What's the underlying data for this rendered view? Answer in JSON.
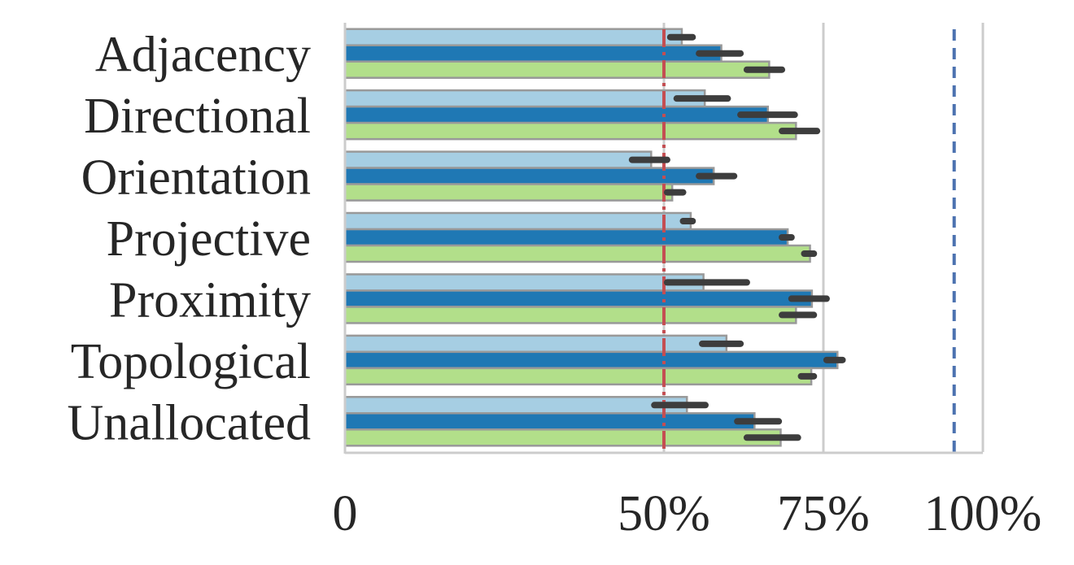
{
  "chart_data": {
    "type": "bar",
    "orientation": "horizontal",
    "categories": [
      "Adjacency",
      "Directional",
      "Orientation",
      "Projective",
      "Proximity",
      "Topological",
      "Unallocated"
    ],
    "series": [
      {
        "color": "#a6cee3",
        "values": [
          52.8,
          56.4,
          48.0,
          54.2,
          56.2,
          59.8,
          53.6
        ],
        "error_low": [
          51.0,
          52.0,
          45.0,
          53.0,
          50.5,
          56.0,
          48.5
        ],
        "error_high": [
          54.5,
          60.0,
          50.5,
          54.5,
          63.0,
          62.0,
          56.5
        ]
      },
      {
        "color": "#1f78b4",
        "values": [
          59.0,
          66.3,
          57.8,
          69.4,
          73.2,
          77.2,
          64.2
        ],
        "error_low": [
          55.5,
          62.0,
          55.5,
          68.5,
          70.0,
          75.5,
          61.5
        ],
        "error_high": [
          62.0,
          70.5,
          61.0,
          70.0,
          75.5,
          78.0,
          68.0
        ]
      },
      {
        "color": "#b2df8a",
        "values": [
          66.5,
          70.7,
          51.3,
          72.9,
          70.7,
          73.1,
          68.3
        ],
        "error_low": [
          63.0,
          68.5,
          50.5,
          72.0,
          68.5,
          71.5,
          63.0
        ],
        "error_high": [
          68.5,
          74.0,
          53.0,
          73.5,
          73.5,
          73.5,
          71.0
        ]
      }
    ],
    "reference_lines": [
      {
        "value": 50,
        "color": "#c44e52",
        "style": "dashed"
      },
      {
        "value": 95.5,
        "color": "#4c72b0",
        "style": "dashed"
      }
    ],
    "x_ticks": [
      {
        "value": 0,
        "label": "0"
      },
      {
        "value": 50,
        "label": "50%"
      },
      {
        "value": 75,
        "label": "75%"
      },
      {
        "value": 100,
        "label": "100%"
      }
    ],
    "xlim": [
      0,
      100
    ],
    "grid": "vertical",
    "title": "",
    "xlabel": "",
    "ylabel": "",
    "errorbar_color": "#3d3d3d",
    "edge_color": "#999999",
    "grid_color": "#cccccc"
  }
}
